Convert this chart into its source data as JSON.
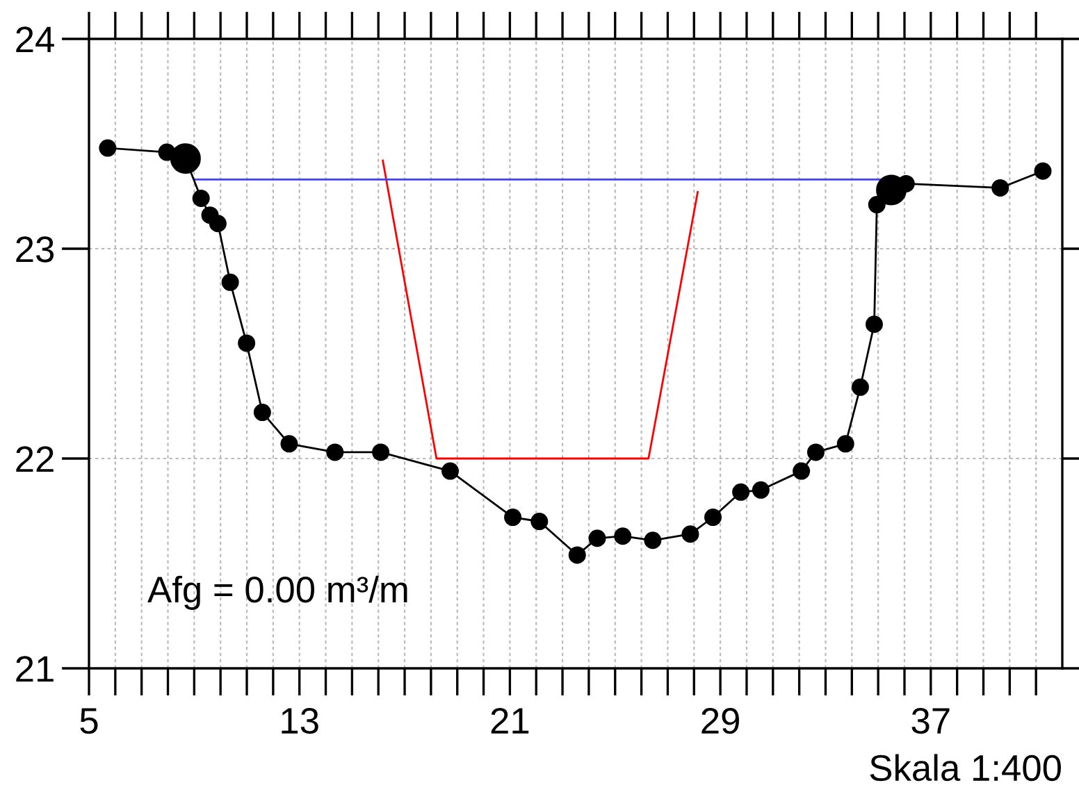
{
  "chart_data": {
    "type": "line",
    "annotations": [
      "Afg = 0.00 m³/m",
      "Skala 1:400"
    ],
    "series": [
      {
        "color": "#ff0000",
        "marker": "none",
        "x": [
          16.17,
          18.21,
          26.27,
          28.14
        ],
        "values": [
          23.42,
          22.0,
          22.0,
          23.27
        ]
      },
      {
        "color": "#4040ff",
        "marker": "none",
        "x": [
          9.0,
          35.25
        ],
        "values": [
          23.33,
          23.33
        ]
      },
      {
        "color": "#000000",
        "marker": "circle",
        "x": [
          5.71,
          7.96,
          8.67,
          9.26,
          9.6,
          9.9,
          10.37,
          10.99,
          11.59,
          12.61,
          14.35,
          16.09,
          18.73,
          21.11,
          22.12,
          23.56,
          24.32,
          25.29,
          26.43,
          27.86,
          28.72,
          29.78,
          30.54,
          32.08,
          32.63,
          33.76,
          34.32,
          34.85,
          34.95,
          35.5,
          36.06,
          39.64,
          41.26
        ],
        "values": [
          23.48,
          23.46,
          23.43,
          23.24,
          23.16,
          23.12,
          22.84,
          22.55,
          22.22,
          22.07,
          22.03,
          22.03,
          21.94,
          21.72,
          21.7,
          21.54,
          21.62,
          21.63,
          21.61,
          21.64,
          21.72,
          21.84,
          21.85,
          21.94,
          22.03,
          22.07,
          22.34,
          22.64,
          23.21,
          23.28,
          23.31,
          23.29,
          23.37
        ]
      },
      {
        "type": "scatter",
        "color": "#000000",
        "marker": "circle",
        "x": [
          8.67,
          35.5
        ],
        "values": [
          23.43,
          23.28
        ]
      }
    ],
    "xlim": [
      5,
      42
    ],
    "xticks": [
      5,
      {
        "value": 6,
        "label": null
      },
      {
        "value": 7,
        "label": null
      },
      {
        "value": 8,
        "label": null
      },
      {
        "value": 9,
        "label": null
      },
      {
        "value": 10,
        "label": null
      },
      {
        "value": 11,
        "label": null
      },
      {
        "value": 12,
        "label": null
      },
      13,
      {
        "value": 14,
        "label": null
      },
      {
        "value": 15,
        "label": null
      },
      {
        "value": 16,
        "label": null
      },
      {
        "value": 17,
        "label": null
      },
      {
        "value": 18,
        "label": null
      },
      {
        "value": 19,
        "label": null
      },
      {
        "value": 20,
        "label": null
      },
      21,
      {
        "value": 22,
        "label": null
      },
      {
        "value": 23,
        "label": null
      },
      {
        "value": 24,
        "label": null
      },
      {
        "value": 25,
        "label": null
      },
      {
        "value": 26,
        "label": null
      },
      {
        "value": 27,
        "label": null
      },
      {
        "value": 28,
        "label": null
      },
      29,
      {
        "value": 30,
        "label": null
      },
      {
        "value": 31,
        "label": null
      },
      {
        "value": 32,
        "label": null
      },
      {
        "value": 33,
        "label": null
      },
      {
        "value": 34,
        "label": null
      },
      {
        "value": 35,
        "label": null
      },
      {
        "value": 36,
        "label": null
      },
      37,
      {
        "value": 38,
        "label": null
      },
      {
        "value": 39,
        "label": null
      },
      {
        "value": 40,
        "label": null
      },
      {
        "value": 41,
        "label": null
      }
    ],
    "ylim": [
      21,
      24
    ],
    "yticks": [
      21,
      22,
      23,
      24
    ],
    "grid": true,
    "line_style": "solid"
  }
}
